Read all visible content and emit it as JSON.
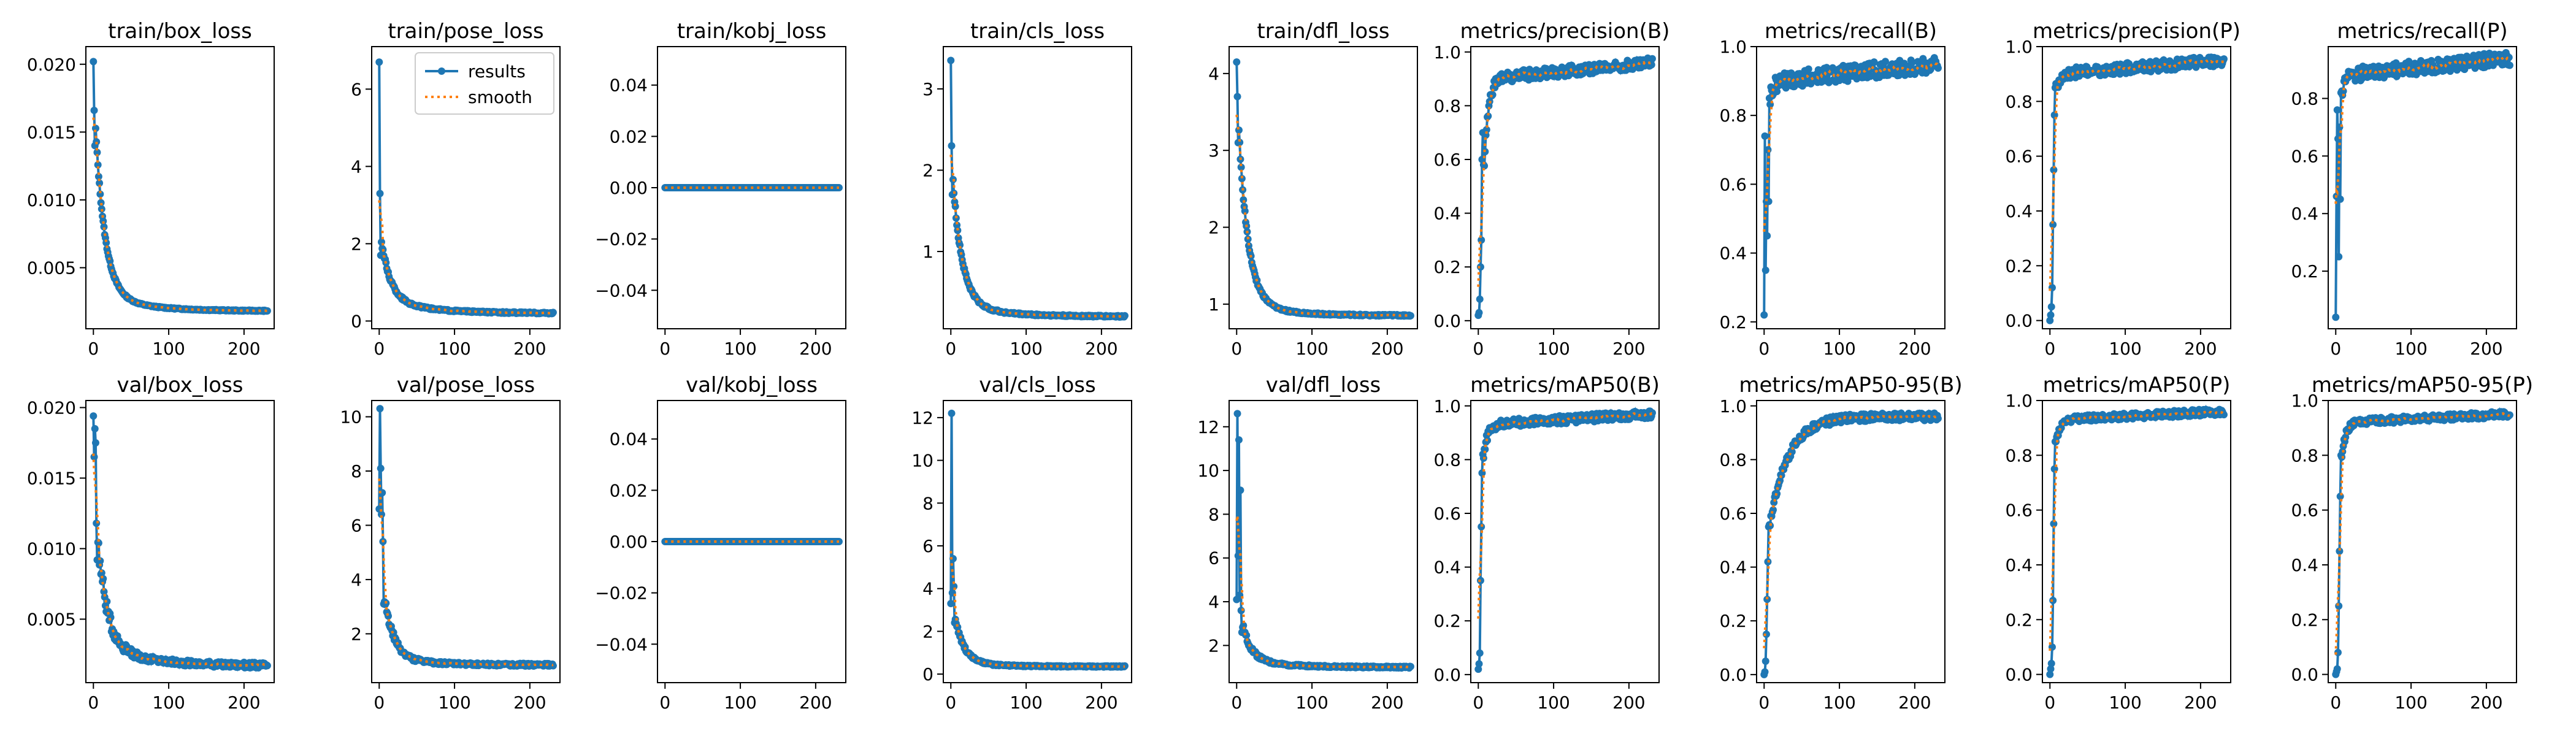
{
  "style": {
    "results_color": "#1f77b4",
    "smooth_color": "#ff7f0e",
    "frame_color": "#000000",
    "background": "#ffffff"
  },
  "chart_data": [
    {
      "type": "line",
      "title": "train/box_loss",
      "xlim": [
        -10,
        240
      ],
      "ylim": [
        0.0005,
        0.0213
      ],
      "xticks": [
        0,
        100,
        200
      ],
      "xtick_labels": [
        "0",
        "100",
        "200"
      ],
      "yticks": [
        0.005,
        0.01,
        0.015,
        0.02
      ],
      "ytick_labels": [
        "0.005",
        "0.010",
        "0.015",
        "0.020"
      ],
      "legend": null,
      "shape": "decay",
      "start": [
        0.0202,
        0.0166,
        0.014
      ],
      "mid": 0.003,
      "end": 0.0018,
      "noise": 4e-05
    },
    {
      "type": "line",
      "title": "train/pose_loss",
      "xlim": [
        -10,
        240
      ],
      "ylim": [
        -0.2,
        7.1
      ],
      "xticks": [
        0,
        100,
        200
      ],
      "xtick_labels": [
        "0",
        "100",
        "200"
      ],
      "yticks": [
        0,
        2,
        4,
        6
      ],
      "ytick_labels": [
        "0",
        "2",
        "4",
        "6"
      ],
      "legend": {
        "position": "upper right",
        "entries": [
          "results",
          "smooth"
        ]
      },
      "shape": "decay",
      "start": [
        6.7,
        3.3,
        1.7
      ],
      "mid": 0.55,
      "end": 0.2,
      "noise": 0.02
    },
    {
      "type": "line",
      "title": "train/kobj_loss",
      "xlim": [
        -10,
        240
      ],
      "ylim": [
        -0.055,
        0.055
      ],
      "xticks": [
        0,
        100,
        200
      ],
      "xtick_labels": [
        "0",
        "100",
        "200"
      ],
      "yticks": [
        -0.04,
        -0.02,
        0,
        0.02,
        0.04
      ],
      "ytick_labels": [
        "−0.04",
        "−0.02",
        "0.00",
        "0.02",
        "0.04"
      ],
      "legend": null,
      "shape": "flat",
      "value": 0.0
    },
    {
      "type": "line",
      "title": "train/cls_loss",
      "xlim": [
        -10,
        240
      ],
      "ylim": [
        0.05,
        3.52
      ],
      "xticks": [
        0,
        100,
        200
      ],
      "xtick_labels": [
        "0",
        "100",
        "200"
      ],
      "yticks": [
        1,
        2,
        3
      ],
      "ytick_labels": [
        "1",
        "2",
        "3"
      ],
      "legend": null,
      "shape": "decay",
      "start": [
        3.35,
        2.3,
        1.7
      ],
      "mid": 0.35,
      "end": 0.2,
      "noise": 0.01
    },
    {
      "type": "line",
      "title": "train/dfl_loss",
      "xlim": [
        -10,
        240
      ],
      "ylim": [
        0.68,
        4.35
      ],
      "xticks": [
        0,
        100,
        200
      ],
      "xtick_labels": [
        "0",
        "100",
        "200"
      ],
      "yticks": [
        1,
        2,
        3,
        4
      ],
      "ytick_labels": [
        "1",
        "2",
        "3",
        "4"
      ],
      "legend": null,
      "shape": "decay",
      "start": [
        4.15,
        3.7,
        3.1
      ],
      "mid": 1.0,
      "end": 0.85,
      "noise": 0.01
    },
    {
      "type": "line",
      "title": "metrics/precision(B)",
      "xlim": [
        -10,
        240
      ],
      "ylim": [
        -0.03,
        1.02
      ],
      "xticks": [
        0,
        100,
        200
      ],
      "xtick_labels": [
        "0",
        "100",
        "200"
      ],
      "yticks": [
        0,
        0.2,
        0.4,
        0.6,
        0.8,
        1.0
      ],
      "ytick_labels": [
        "0.0",
        "0.2",
        "0.4",
        "0.6",
        "0.8",
        "1.0"
      ],
      "legend": null,
      "shape": "rise",
      "start": [
        0.02,
        0.03,
        0.08,
        0.2,
        0.3,
        0.6,
        0.7,
        0.58
      ],
      "plateau": 0.9,
      "end": 0.96,
      "noise": 0.02
    },
    {
      "type": "line",
      "title": "metrics/recall(B)",
      "xlim": [
        -10,
        240
      ],
      "ylim": [
        0.18,
        1.0
      ],
      "xticks": [
        0,
        100,
        200
      ],
      "xtick_labels": [
        "0",
        "100",
        "200"
      ],
      "yticks": [
        0.2,
        0.4,
        0.6,
        0.8,
        1.0
      ],
      "ytick_labels": [
        "0.2",
        "0.4",
        "0.6",
        "0.8",
        "1.0"
      ],
      "legend": null,
      "shape": "rise",
      "start": [
        0.22,
        0.74,
        0.35,
        0.55,
        0.45,
        0.7,
        0.55,
        0.85
      ],
      "plateau": 0.9,
      "end": 0.95,
      "noise": 0.025
    },
    {
      "type": "line",
      "title": "metrics/precision(P)",
      "xlim": [
        -10,
        240
      ],
      "ylim": [
        -0.03,
        1.0
      ],
      "xticks": [
        0,
        100,
        200
      ],
      "xtick_labels": [
        "0",
        "100",
        "200"
      ],
      "yticks": [
        0,
        0.2,
        0.4,
        0.6,
        0.8,
        1.0
      ],
      "ytick_labels": [
        "0.0",
        "0.2",
        "0.4",
        "0.6",
        "0.8",
        "1.0"
      ],
      "legend": null,
      "shape": "rise",
      "start": [
        0.0,
        0.02,
        0.05,
        0.12,
        0.35,
        0.55,
        0.75,
        0.85
      ],
      "plateau": 0.9,
      "end": 0.95,
      "noise": 0.02
    },
    {
      "type": "line",
      "title": "metrics/recall(P)",
      "xlim": [
        -10,
        240
      ],
      "ylim": [
        0.0,
        0.98
      ],
      "xticks": [
        0,
        100,
        200
      ],
      "xtick_labels": [
        "0",
        "100",
        "200"
      ],
      "yticks": [
        0.2,
        0.4,
        0.6,
        0.8
      ],
      "ytick_labels": [
        "0.2",
        "0.4",
        "0.6",
        "0.8"
      ],
      "legend": null,
      "shape": "rise",
      "start": [
        0.04,
        0.46,
        0.76,
        0.66,
        0.25,
        0.7,
        0.45,
        0.82
      ],
      "plateau": 0.88,
      "end": 0.94,
      "noise": 0.025
    },
    {
      "type": "line",
      "title": "val/box_loss",
      "xlim": [
        -10,
        240
      ],
      "ylim": [
        0.0005,
        0.0205
      ],
      "xticks": [
        0,
        100,
        200
      ],
      "xtick_labels": [
        "0",
        "100",
        "200"
      ],
      "yticks": [
        0.005,
        0.01,
        0.015,
        0.02
      ],
      "ytick_labels": [
        "0.005",
        "0.010",
        "0.015",
        "0.020"
      ],
      "legend": null,
      "shape": "decay",
      "start": [
        0.0194,
        0.0165,
        0.0185,
        0.0175,
        0.0118,
        0.0092
      ],
      "mid": 0.0032,
      "end": 0.0017,
      "noise": 0.0002
    },
    {
      "type": "line",
      "title": "val/pose_loss",
      "xlim": [
        -10,
        240
      ],
      "ylim": [
        0.2,
        10.6
      ],
      "xticks": [
        0,
        100,
        200
      ],
      "xtick_labels": [
        "0",
        "100",
        "200"
      ],
      "yticks": [
        2,
        4,
        6,
        8,
        10
      ],
      "ytick_labels": [
        "2",
        "4",
        "6",
        "8",
        "10"
      ],
      "legend": null,
      "shape": "decay",
      "start": [
        6.6,
        10.3,
        8.1,
        6.4,
        7.2,
        5.4,
        3.1
      ],
      "mid": 1.1,
      "end": 0.85,
      "noise": 0.05
    },
    {
      "type": "line",
      "title": "val/kobj_loss",
      "xlim": [
        -10,
        240
      ],
      "ylim": [
        -0.055,
        0.055
      ],
      "xticks": [
        0,
        100,
        200
      ],
      "xtick_labels": [
        "0",
        "100",
        "200"
      ],
      "yticks": [
        -0.04,
        -0.02,
        0,
        0.02,
        0.04
      ],
      "ytick_labels": [
        "−0.04",
        "−0.02",
        "0.00",
        "0.02",
        "0.04"
      ],
      "legend": null,
      "shape": "flat",
      "value": 0.0
    },
    {
      "type": "line",
      "title": "val/cls_loss",
      "xlim": [
        -10,
        240
      ],
      "ylim": [
        -0.4,
        12.8
      ],
      "xticks": [
        0,
        100,
        200
      ],
      "xtick_labels": [
        "0",
        "100",
        "200"
      ],
      "yticks": [
        0,
        2,
        4,
        6,
        8,
        10,
        12
      ],
      "ytick_labels": [
        "0",
        "2",
        "4",
        "6",
        "8",
        "10",
        "12"
      ],
      "legend": null,
      "shape": "decay",
      "start": [
        3.3,
        12.2,
        3.8,
        5.4,
        4.1,
        2.4
      ],
      "mid": 0.5,
      "end": 0.35,
      "noise": 0.03
    },
    {
      "type": "line",
      "title": "val/dfl_loss",
      "xlim": [
        -10,
        240
      ],
      "ylim": [
        0.3,
        13.2
      ],
      "xticks": [
        0,
        100,
        200
      ],
      "xtick_labels": [
        "0",
        "100",
        "200"
      ],
      "yticks": [
        2,
        4,
        6,
        8,
        10,
        12
      ],
      "ytick_labels": [
        "2",
        "4",
        "6",
        "8",
        "10",
        "12"
      ],
      "legend": null,
      "shape": "decay",
      "start": [
        4.1,
        12.6,
        6.1,
        11.4,
        4.3,
        9.1,
        3.6,
        2.6
      ],
      "mid": 1.3,
      "end": 1.0,
      "noise": 0.04
    },
    {
      "type": "line",
      "title": "metrics/mAP50(B)",
      "xlim": [
        -10,
        240
      ],
      "ylim": [
        -0.03,
        1.02
      ],
      "xticks": [
        0,
        100,
        200
      ],
      "xtick_labels": [
        "0",
        "100",
        "200"
      ],
      "yticks": [
        0,
        0.2,
        0.4,
        0.6,
        0.8,
        1.0
      ],
      "ytick_labels": [
        "0.0",
        "0.2",
        "0.4",
        "0.6",
        "0.8",
        "1.0"
      ],
      "legend": null,
      "shape": "rise",
      "start": [
        0.02,
        0.04,
        0.08,
        0.35,
        0.55,
        0.75,
        0.82
      ],
      "plateau": 0.93,
      "end": 0.97,
      "noise": 0.015
    },
    {
      "type": "line",
      "title": "metrics/mAP50-95(B)",
      "xlim": [
        -10,
        240
      ],
      "ylim": [
        -0.03,
        1.02
      ],
      "xticks": [
        0,
        100,
        200
      ],
      "xtick_labels": [
        "0",
        "100",
        "200"
      ],
      "yticks": [
        0,
        0.2,
        0.4,
        0.6,
        0.8,
        1.0
      ],
      "ytick_labels": [
        "0.0",
        "0.2",
        "0.4",
        "0.6",
        "0.8",
        "1.0"
      ],
      "legend": null,
      "shape": "rise_slow",
      "start": [
        0.0,
        0.01,
        0.05,
        0.15,
        0.28,
        0.42,
        0.55
      ],
      "plateau": 0.88,
      "end": 0.96,
      "noise": 0.015
    },
    {
      "type": "line",
      "title": "metrics/mAP50(P)",
      "xlim": [
        -10,
        240
      ],
      "ylim": [
        -0.03,
        1.0
      ],
      "xticks": [
        0,
        100,
        200
      ],
      "xtick_labels": [
        "0",
        "100",
        "200"
      ],
      "yticks": [
        0,
        0.2,
        0.4,
        0.6,
        0.8,
        1.0
      ],
      "ytick_labels": [
        "0.0",
        "0.2",
        "0.4",
        "0.6",
        "0.8",
        "1.0"
      ],
      "legend": null,
      "shape": "rise",
      "start": [
        0.0,
        0.02,
        0.04,
        0.1,
        0.27,
        0.55,
        0.75,
        0.85
      ],
      "plateau": 0.93,
      "end": 0.96,
      "noise": 0.012
    },
    {
      "type": "line",
      "title": "metrics/mAP50-95(P)",
      "xlim": [
        -10,
        240
      ],
      "ylim": [
        -0.03,
        1.0
      ],
      "xticks": [
        0,
        100,
        200
      ],
      "xtick_labels": [
        "0",
        "100",
        "200"
      ],
      "yticks": [
        0,
        0.2,
        0.4,
        0.6,
        0.8,
        1.0
      ],
      "ytick_labels": [
        "0.0",
        "0.2",
        "0.4",
        "0.6",
        "0.8",
        "1.0"
      ],
      "legend": null,
      "shape": "rise",
      "start": [
        0.0,
        0.01,
        0.02,
        0.08,
        0.25,
        0.45,
        0.65,
        0.8
      ],
      "plateau": 0.92,
      "end": 0.95,
      "noise": 0.012
    }
  ]
}
